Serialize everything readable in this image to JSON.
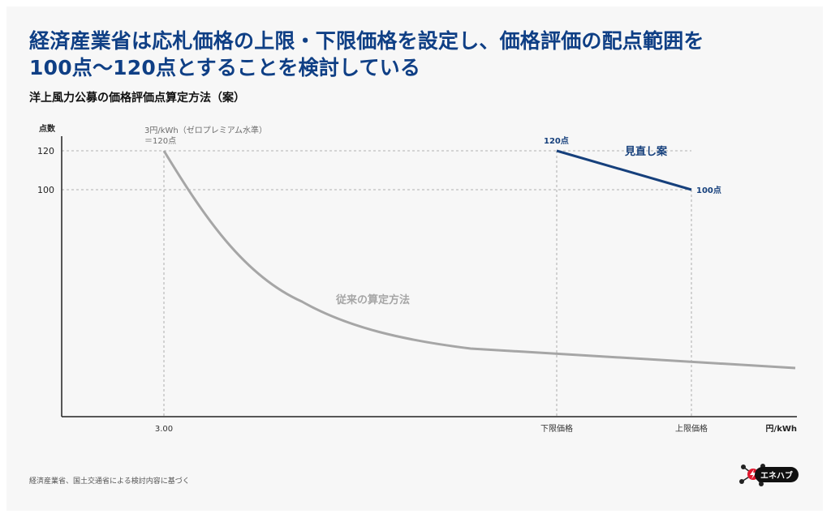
{
  "title_line1": "経済産業省は応札価格の上限・下限価格を設定し、価格評価の配点範囲を",
  "title_line2": "100点〜120点とすることを検討している",
  "subtitle": "洋上風力公募の価格評価点算定方法（案）",
  "source": "経済産業省、国土交通省による検討内容に基づく",
  "logo_text": "エネハブ",
  "colors": {
    "title": "#0f3f85",
    "revised_line": "#16407c",
    "conventional_line": "#a6a6a6",
    "axis": "#222222",
    "grid": "#9a9a9a",
    "logo_accent": "#e0182d"
  },
  "chart_data": {
    "type": "line",
    "ylabel": "点数",
    "xlabel": "円/kWh",
    "y_ticks": [
      {
        "label": "120",
        "value": 120
      },
      {
        "label": "100",
        "value": 100
      }
    ],
    "x_ticks": [
      {
        "label": "3.00",
        "position": "3.00"
      },
      {
        "label": "下限価格",
        "position": "lower_limit"
      },
      {
        "label": "上限価格",
        "position": "upper_limit"
      }
    ],
    "grid": "dashed guides at y=120, y=100 and at each x tick",
    "series": [
      {
        "name": "従来の算定方法",
        "style": "curve decreasing from 120 points at 3.00 円/kWh",
        "start_value": 120
      },
      {
        "name": "見直し案",
        "points": [
          {
            "x": "下限価格",
            "y": 120
          },
          {
            "x": "上限価格",
            "y": 100
          }
        ]
      }
    ],
    "annotations": {
      "zero_premium_line1": "3円/kWh（ゼロプレミアム水準）",
      "zero_premium_line2": "＝120点",
      "revised_start": "120点",
      "revised_end": "100点"
    }
  }
}
